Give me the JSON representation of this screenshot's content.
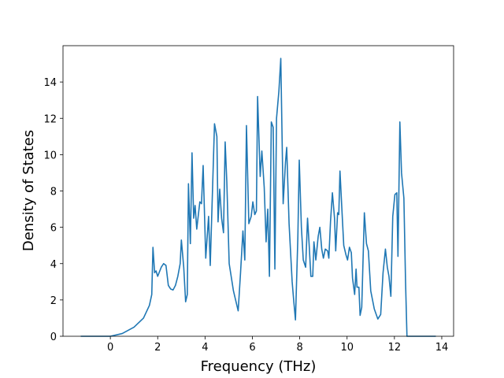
{
  "chart_data": {
    "type": "line",
    "xlabel": "Frequency (THz)",
    "ylabel": "Density of States",
    "xlim": [
      -2.0,
      14.5
    ],
    "ylim": [
      0,
      16
    ],
    "xticks": [
      0,
      2,
      4,
      6,
      8,
      10,
      12,
      14
    ],
    "yticks": [
      0,
      2,
      4,
      6,
      8,
      10,
      12,
      14
    ],
    "x": [
      -1.25,
      0,
      0.5,
      1.0,
      1.4,
      1.65,
      1.75,
      1.8,
      1.87,
      1.93,
      2.0,
      2.15,
      2.25,
      2.35,
      2.45,
      2.55,
      2.65,
      2.75,
      2.85,
      2.95,
      3.0,
      3.1,
      3.18,
      3.25,
      3.3,
      3.38,
      3.45,
      3.52,
      3.58,
      3.65,
      3.78,
      3.85,
      3.92,
      4.03,
      4.15,
      4.22,
      4.4,
      4.5,
      4.55,
      4.62,
      4.7,
      4.78,
      4.85,
      4.92,
      5.02,
      5.2,
      5.4,
      5.5,
      5.6,
      5.68,
      5.75,
      5.85,
      5.95,
      6.02,
      6.1,
      6.17,
      6.22,
      6.33,
      6.4,
      6.5,
      6.58,
      6.65,
      6.72,
      6.8,
      6.88,
      6.95,
      7.02,
      7.12,
      7.2,
      7.3,
      7.4,
      7.45,
      7.55,
      7.68,
      7.75,
      7.82,
      7.92,
      7.98,
      8.07,
      8.15,
      8.25,
      8.33,
      8.4,
      8.47,
      8.55,
      8.6,
      8.68,
      8.78,
      8.85,
      8.93,
      9.0,
      9.08,
      9.18,
      9.23,
      9.3,
      9.38,
      9.47,
      9.52,
      9.6,
      9.65,
      9.7,
      9.8,
      9.86,
      9.95,
      10.02,
      10.1,
      10.18,
      10.23,
      10.32,
      10.38,
      10.42,
      10.5,
      10.55,
      10.62,
      10.73,
      10.82,
      10.9,
      11.0,
      11.15,
      11.3,
      11.42,
      11.52,
      11.62,
      11.7,
      11.77,
      11.85,
      11.93,
      12.02,
      12.1,
      12.15,
      12.23,
      12.3,
      12.4,
      12.47,
      12.53,
      13.75
    ],
    "series": [
      {
        "color": "#1f77b4",
        "values": [
          0,
          0,
          0.15,
          0.5,
          1.0,
          1.7,
          2.3,
          4.9,
          3.5,
          3.6,
          3.3,
          3.8,
          4.0,
          3.9,
          2.8,
          2.6,
          2.55,
          2.8,
          3.3,
          4.0,
          5.3,
          3.8,
          1.9,
          2.3,
          8.4,
          5.1,
          10.1,
          6.5,
          7.2,
          5.9,
          7.4,
          7.3,
          9.4,
          4.3,
          6.6,
          3.9,
          11.7,
          11.0,
          6.3,
          8.1,
          6.5,
          5.7,
          10.7,
          8.5,
          4.0,
          2.5,
          1.4,
          3.5,
          5.8,
          4.2,
          11.6,
          6.2,
          6.6,
          7.4,
          6.7,
          6.9,
          13.2,
          8.8,
          10.2,
          8.2,
          5.2,
          7.0,
          3.3,
          11.8,
          11.5,
          3.7,
          12.0,
          13.5,
          15.3,
          7.3,
          9.6,
          10.4,
          6.2,
          3.0,
          1.9,
          0.9,
          5.4,
          9.7,
          6.0,
          4.2,
          3.8,
          6.5,
          5.0,
          3.3,
          3.3,
          5.2,
          4.2,
          5.5,
          6.0,
          4.8,
          4.3,
          4.8,
          4.7,
          4.3,
          6.3,
          7.9,
          6.5,
          4.7,
          6.8,
          6.7,
          9.1,
          6.5,
          5.0,
          4.5,
          4.2,
          4.9,
          4.6,
          3.2,
          2.3,
          3.7,
          2.7,
          2.7,
          1.15,
          1.6,
          6.8,
          5.1,
          4.7,
          2.5,
          1.5,
          0.95,
          1.2,
          3.5,
          4.8,
          3.8,
          3.3,
          2.2,
          6.6,
          7.8,
          7.9,
          4.4,
          11.8,
          9.0,
          7.6,
          3.0,
          0,
          0
        ]
      }
    ]
  }
}
